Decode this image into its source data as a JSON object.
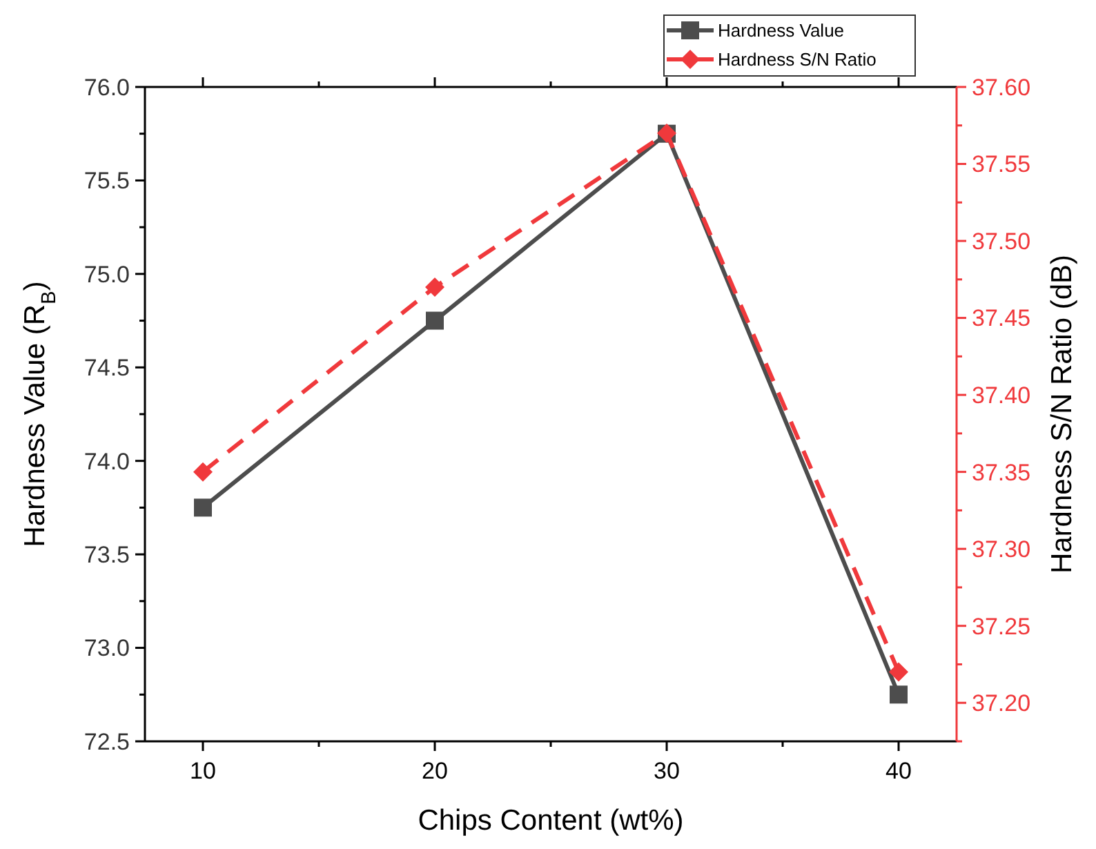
{
  "chart_data": {
    "type": "line",
    "xlabel": "Chips Content (wt%)",
    "ylabel": "Hardness Value (R$_{B}$)",
    "y2label": "Hardness S/N Ratio (dB)",
    "x": [
      10,
      20,
      30,
      40
    ],
    "series": [
      {
        "name": "Hardness Value",
        "color": "#4d4d4d",
        "values": [
          73.75,
          74.75,
          75.75,
          72.75
        ],
        "marker": "square",
        "line_style": "solid"
      },
      {
        "name": "Hardness S/N Ratio",
        "color": "#f0393c",
        "values": [
          37.35,
          37.47,
          37.57,
          37.22
        ],
        "axis": "y2",
        "marker": "diamond",
        "line_style": "dashed"
      }
    ],
    "xlim": [
      7.5,
      42.5
    ],
    "xticks": [
      10,
      {
        "value": 15,
        "label": null
      },
      20,
      {
        "value": 25,
        "label": null
      },
      30,
      {
        "value": 35,
        "label": null
      },
      40
    ],
    "ylim": [
      72.5,
      76.0
    ],
    "yticks": [
      {
        "value": 72.5,
        "label": "72.5"
      },
      {
        "value": 73,
        "label": "73.0"
      },
      {
        "value": 73.5,
        "label": "73.5"
      },
      {
        "value": 74,
        "label": "74.0"
      },
      {
        "value": 74.5,
        "label": "74.5"
      },
      {
        "value": 75,
        "label": "75.0"
      },
      {
        "value": 75.5,
        "label": "75.5"
      },
      {
        "value": 76,
        "label": "76.0"
      }
    ],
    "y2lim": [
      37.175,
      37.6
    ],
    "y2ticks": [
      {
        "value": 37.2,
        "label": "37.20"
      },
      {
        "value": 37.25,
        "label": "37.25"
      },
      {
        "value": 37.3,
        "label": "37.30"
      },
      {
        "value": 37.35,
        "label": "37.35"
      },
      {
        "value": 37.4,
        "label": "37.40"
      },
      {
        "value": 37.45,
        "label": "37.45"
      },
      {
        "value": 37.5,
        "label": "37.50"
      },
      {
        "value": 37.55,
        "label": "37.55"
      },
      {
        "value": 37.6,
        "label": "37.60"
      }
    ],
    "grid": false,
    "legend": "top right"
  }
}
